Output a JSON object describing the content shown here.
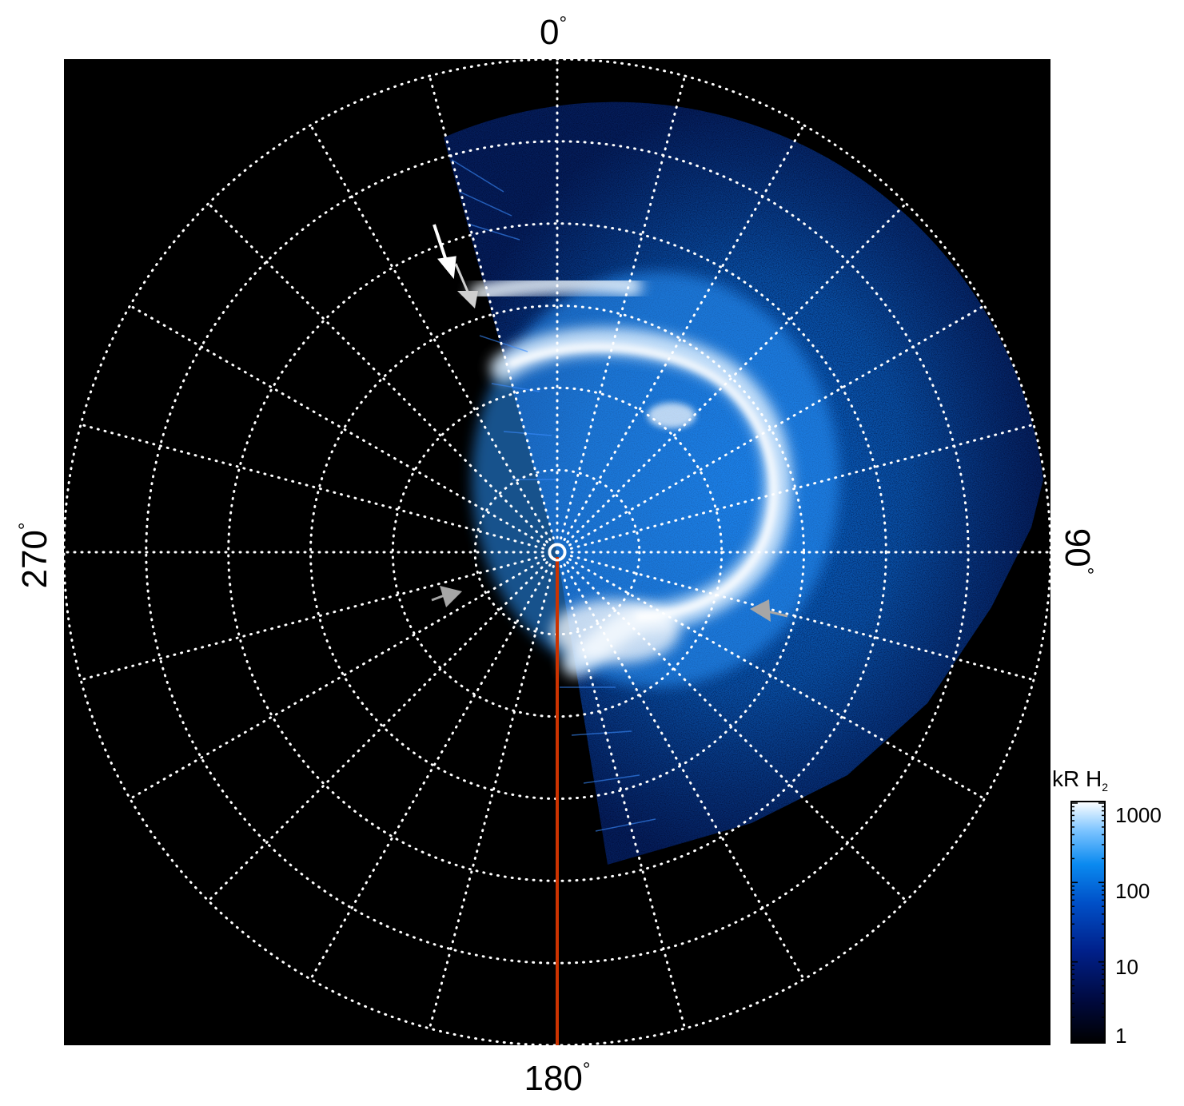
{
  "figure": {
    "azimuth_labels": [
      {
        "key": "top",
        "value": "0",
        "suffix": "°"
      },
      {
        "key": "right",
        "value": "90",
        "suffix": "°"
      },
      {
        "key": "bottom",
        "value": "180",
        "suffix": "°"
      },
      {
        "key": "left",
        "value": "270",
        "suffix": "°"
      }
    ],
    "colorbar": {
      "title": "kR H",
      "title_subscript": "2",
      "ticks": [
        "1000",
        "100",
        "10",
        "1"
      ],
      "scale": "log",
      "range": [
        1,
        1000
      ]
    },
    "grid": {
      "spokes_every_deg": 15,
      "rings": 6,
      "style": "dotted",
      "color": "#ffffff"
    },
    "colors": {
      "background": "#000000",
      "emission_low": "#001060",
      "emission_mid": "#0a7ae6",
      "emission_high": "#e6f4ff",
      "meridian_line": "#cc3300",
      "arrow_white": "#ffffff",
      "arrow_grey": "#a6a6a6"
    }
  }
}
